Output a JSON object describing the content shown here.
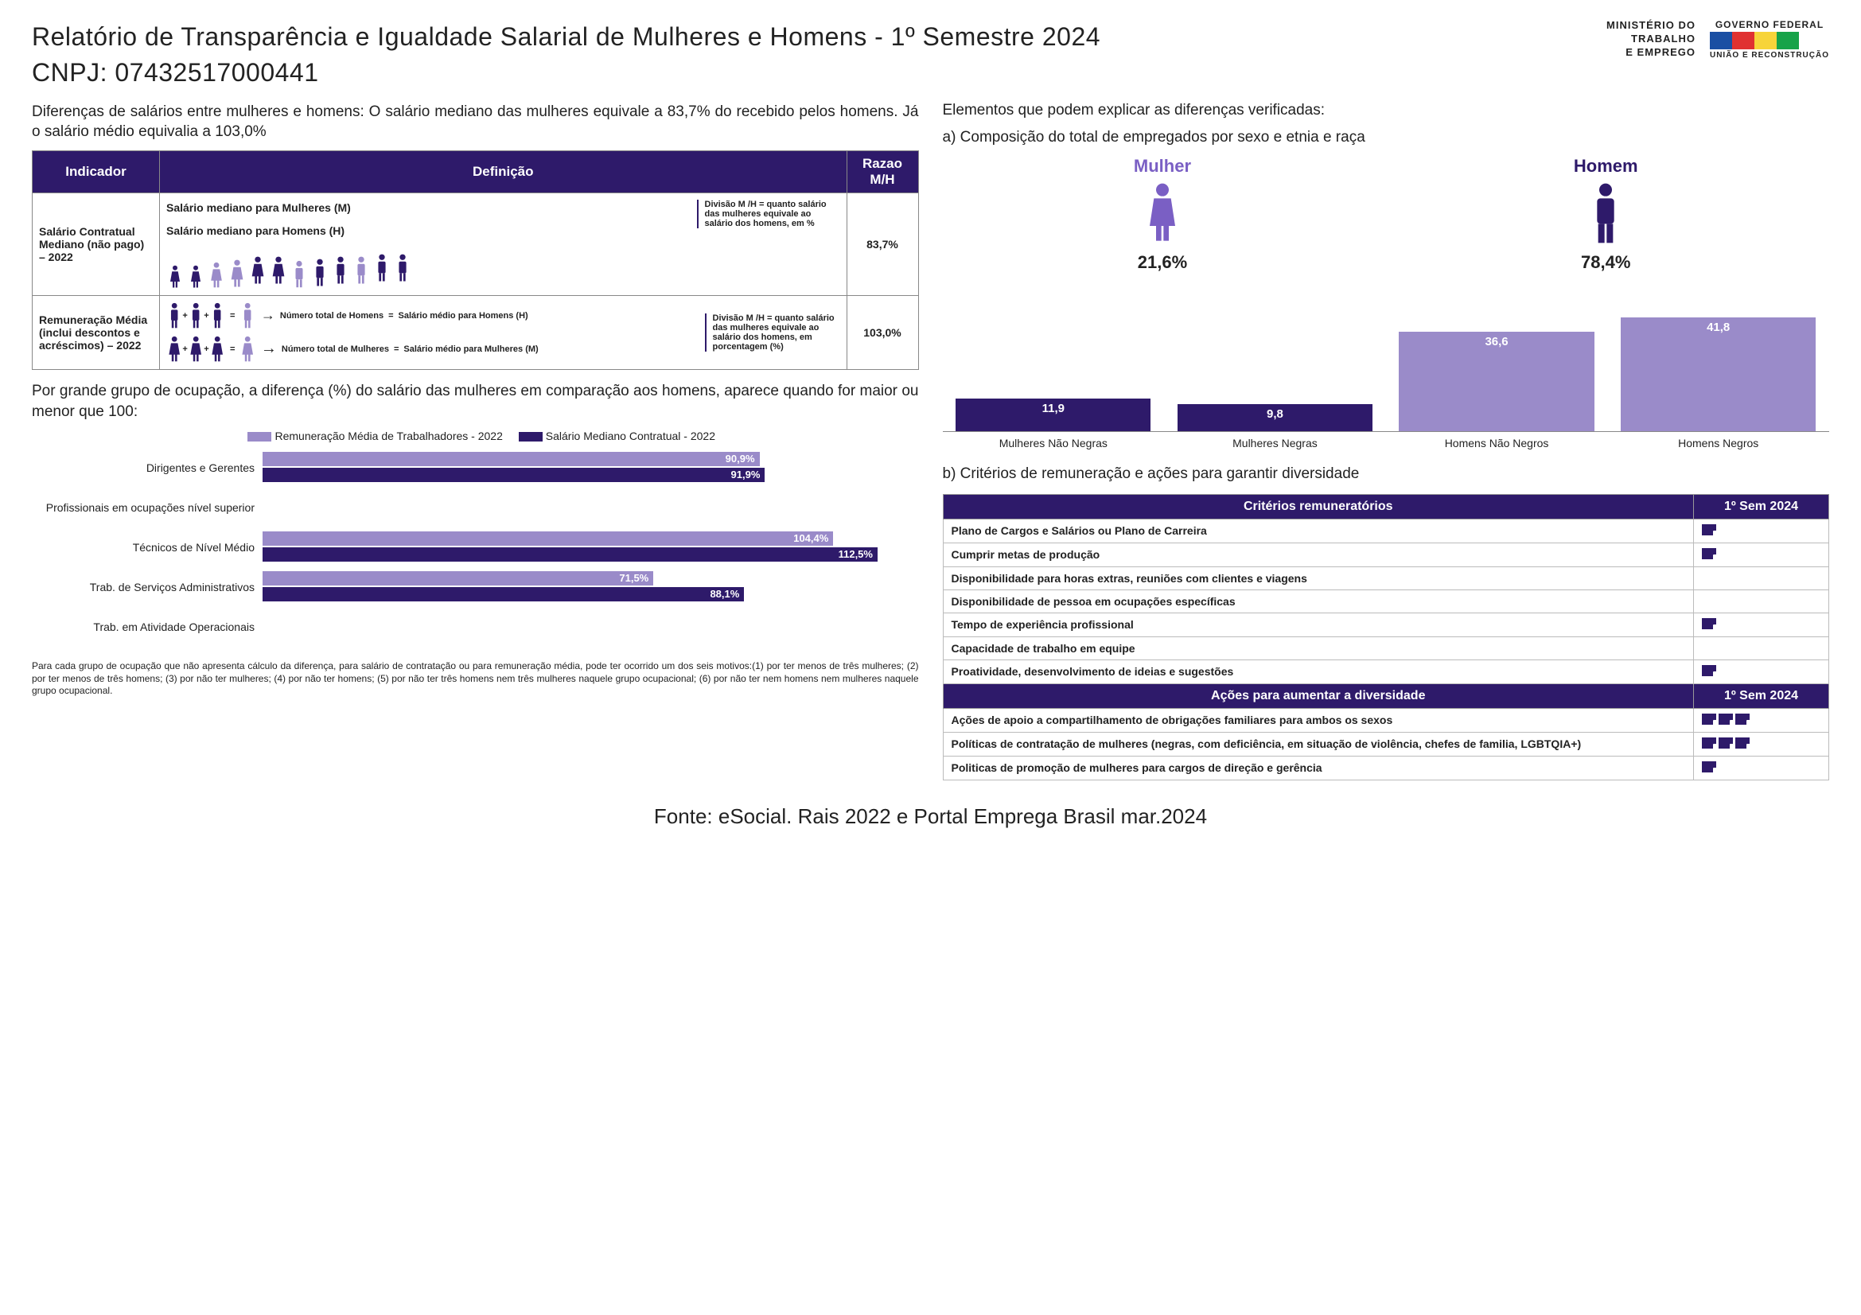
{
  "header": {
    "title_line1": "Relatório de Transparência e Igualdade Salarial de Mulheres e Homens - 1º Semestre 2024",
    "title_line2": "CNPJ: 07432517000441",
    "ministry_l1": "MINISTÉRIO DO",
    "ministry_l2": "TRABALHO",
    "ministry_l3": "E EMPREGO",
    "gov_top": "GOVERNO FEDERAL",
    "gov_bottom": "UNIÃO E RECONSTRUÇÃO",
    "flag_colors": [
      "#1a4fa3",
      "#e03131",
      "#f7d43a",
      "#17a349"
    ]
  },
  "left": {
    "intro": "Diferenças de salários entre mulheres e homens: O salário mediano das mulheres equivale a 83,7% do recebido pelos homens. Já o salário médio equivalia a 103,0%",
    "table": {
      "headers": {
        "indicador": "Indicador",
        "definicao": "Definição",
        "razao": "Razao M/H"
      },
      "rows": [
        {
          "label": "Salário Contratual Mediano (não pago) – 2022",
          "def_t1": "Salário mediano para Mulheres (M)",
          "def_t2": "Salário mediano para Homens (H)",
          "def_t3": "Divisão M /H = quanto salário das mulheres equivale ao salário dos homens, em %",
          "razao": "83,7%"
        },
        {
          "label": "Remuneração Média (inclui descontos e acréscimos) – 2022",
          "def_t1": "Número total de Homens",
          "def_t2": "Salário médio para Homens (H)",
          "def_t3": "Número total de Mulheres",
          "def_t4": "Salário médio para Mulheres (M)",
          "def_t5": "Divisão M /H = quanto salário das mulheres equivale ao salário dos homens, em porcentagem (%)",
          "razao": "103,0%"
        }
      ]
    },
    "sub_intro": "Por grande grupo de ocupação, a diferença (%) do salário das mulheres em comparação aos homens, aparece quando for maior ou menor que 100:",
    "hbar": {
      "legend": {
        "a": "Remuneração Média de Trabalhadores - 2022",
        "b": "Salário Mediano Contratual - 2022"
      },
      "color_a": "#9a8bc9",
      "color_b": "#2e1a6a",
      "max": 120,
      "rows": [
        {
          "label": "Dirigentes e Gerentes",
          "a": 90.9,
          "b": 91.9,
          "a_txt": "90,9%",
          "b_txt": "91,9%"
        },
        {
          "label": "Profissionais em ocupações nível superior",
          "a": null,
          "b": null
        },
        {
          "label": "Técnicos de Nível Médio",
          "a": 104.4,
          "b": 112.5,
          "a_txt": "104,4%",
          "b_txt": "112,5%"
        },
        {
          "label": "Trab. de Serviços Administrativos",
          "a": 71.5,
          "b": 88.1,
          "a_txt": "71,5%",
          "b_txt": "88,1%"
        },
        {
          "label": "Trab. em Atividade Operacionais",
          "a": null,
          "b": null
        }
      ]
    },
    "footnote": "Para cada grupo de ocupação que não apresenta cálculo da diferença, para salário de contratação ou para remuneração média, pode ter ocorrido um dos seis motivos:(1) por ter menos de três mulheres; (2) por ter menos de três homens; (3) por não ter mulheres; (4) por não ter homens; (5) por não ter três homens nem três mulheres naquele grupo ocupacional; (6) por não ter nem homens nem mulheres naquele grupo ocupacional."
  },
  "right": {
    "intro": "Elementos que podem explicar as diferenças verificadas:",
    "section_a": "a) Composição do total de empregados por sexo e etnia e raça",
    "gender": {
      "mulher_label": "Mulher",
      "mulher_pct": "21,6%",
      "mulher_color": "#7a5fc4",
      "homem_label": "Homem",
      "homem_pct": "78,4%",
      "homem_color": "#2e1a6a"
    },
    "vbar": {
      "color": "#9a8bc9",
      "max": 50,
      "items": [
        {
          "label": "Mulheres Não Negras",
          "val": 11.9,
          "txt": "11,9",
          "dark": true
        },
        {
          "label": "Mulheres Negras",
          "val": 9.8,
          "txt": "9,8",
          "dark": true
        },
        {
          "label": "Homens Não Negros",
          "val": 36.6,
          "txt": "36,6",
          "dark": false
        },
        {
          "label": "Homens Negros",
          "val": 41.8,
          "txt": "41,8",
          "dark": false
        }
      ]
    },
    "section_b": "b) Critérios de remuneração e ações para garantir diversidade",
    "crit_table": {
      "header1": "Critérios remuneratórios",
      "period": "1º Sem 2024",
      "rows1": [
        {
          "text": "Plano de Cargos e Salários ou Plano de Carreira",
          "icons": 1
        },
        {
          "text": "Cumprir metas de produção",
          "icons": 1
        },
        {
          "text": "Disponibilidade para horas extras, reuniões com clientes e viagens",
          "icons": 0
        },
        {
          "text": "Disponibilidade de pessoa em ocupações específicas",
          "icons": 0
        },
        {
          "text": "Tempo de experiência profissional",
          "icons": 1
        },
        {
          "text": "Capacidade de trabalho em equipe",
          "icons": 0
        },
        {
          "text": "Proatividade, desenvolvimento de ideias e sugestões",
          "icons": 1
        }
      ],
      "header2": "Ações para aumentar a diversidade",
      "rows2": [
        {
          "text": "Ações de apoio a compartilhamento de obrigações familiares para ambos os sexos",
          "icons": 3
        },
        {
          "text": "Políticas de contratação de mulheres (negras, com deficiência, em situação de violência, chefes de familia, LGBTQIA+)",
          "icons": 3
        },
        {
          "text": "Politicas de promoção de mulheres para cargos de direção e gerência",
          "icons": 1
        }
      ]
    }
  },
  "source": "Fonte: eSocial. Rais 2022 e Portal Emprega Brasil mar.2024"
}
